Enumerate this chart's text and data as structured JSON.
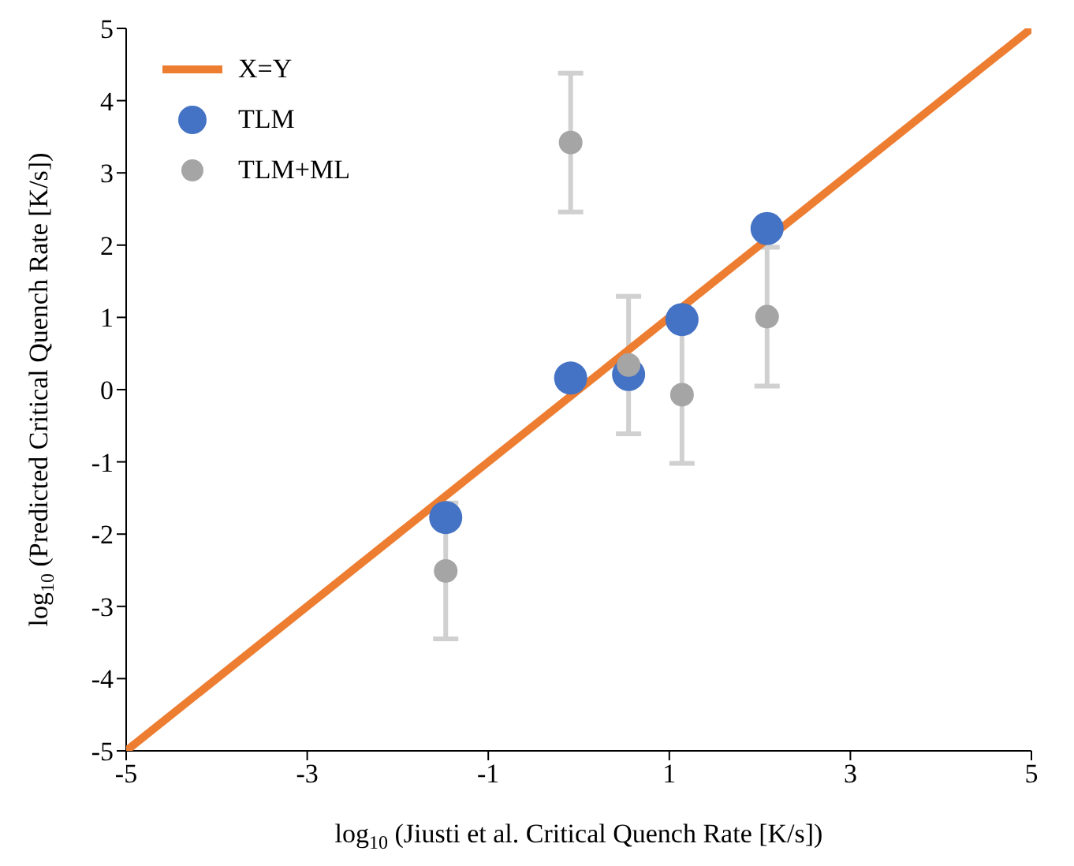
{
  "chart_data": {
    "type": "scatter",
    "xlabel": "log$_{10}$ (Jiusti et al. Critical Quench Rate [K/s])",
    "ylabel": "log$_{10}$ (Predicted Critical Quench Rate [K/s])",
    "x": [
      -1.47,
      -0.09,
      0.55,
      1.14,
      2.08
    ],
    "xlim": [
      -5,
      5
    ],
    "xticks": [
      -5,
      -3,
      -1,
      1,
      3,
      5
    ],
    "ylim": [
      -5,
      5
    ],
    "yticks": [
      -5,
      -4,
      -3,
      -2,
      -1,
      0,
      1,
      2,
      3,
      4,
      5
    ],
    "grid": false,
    "legend": "top left",
    "marker": "circle",
    "series": [
      {
        "name": "X=Y",
        "type": "line",
        "color": "#ed7d31",
        "x": [
          -5,
          5
        ],
        "values": [
          -5,
          5
        ],
        "marker": "none"
      },
      {
        "name": "TLM",
        "color": "#4472c4",
        "values": [
          -1.77,
          0.16,
          0.21,
          0.97,
          2.23
        ]
      },
      {
        "name": "TLM+ML",
        "color": "#a5a5a5",
        "values": [
          -2.51,
          3.42,
          0.34,
          -0.07,
          1.01
        ],
        "errors": [
          0.94,
          0.96,
          0.95,
          0.95,
          0.96
        ]
      }
    ]
  }
}
